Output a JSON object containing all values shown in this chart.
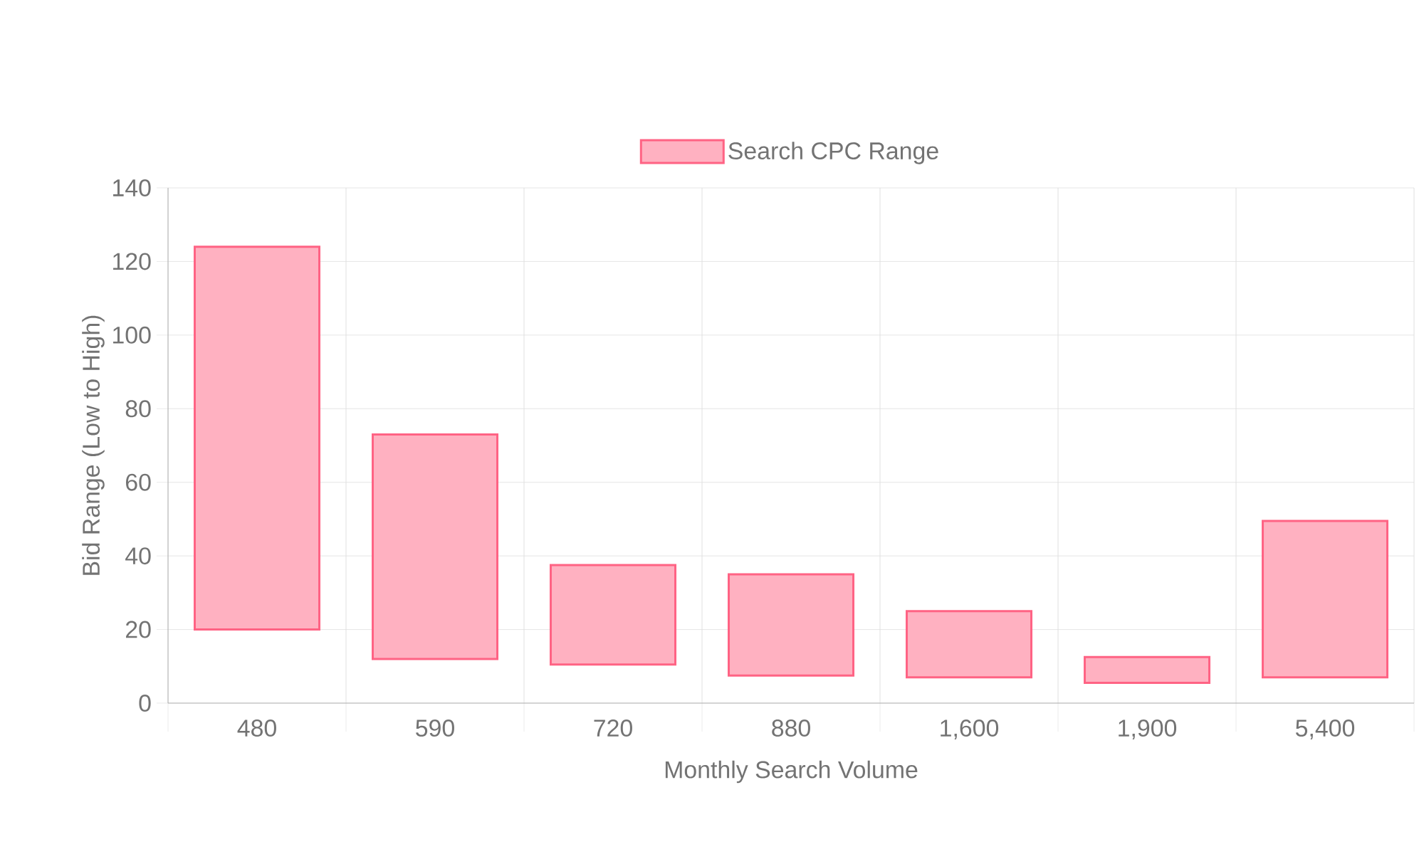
{
  "chart_data": {
    "type": "bar",
    "xlabel": "Monthly Search Volume",
    "ylabel": "Bid Range (Low to High)",
    "categories": [
      "480",
      "590",
      "720",
      "880",
      "1,600",
      "1,900",
      "5,400"
    ],
    "series": [
      {
        "name": "Search CPC Range",
        "color": "#ff6384",
        "values": [
          104,
          61,
          27,
          27.5,
          18,
          7,
          42.5
        ],
        "base": [
          20,
          12,
          10.5,
          7.5,
          7,
          5.5,
          7
        ]
      }
    ],
    "ylim": [
      0,
      140
    ],
    "yticks": [
      0,
      20,
      40,
      60,
      80,
      100,
      120,
      140
    ],
    "grid": true,
    "legend": "top"
  }
}
